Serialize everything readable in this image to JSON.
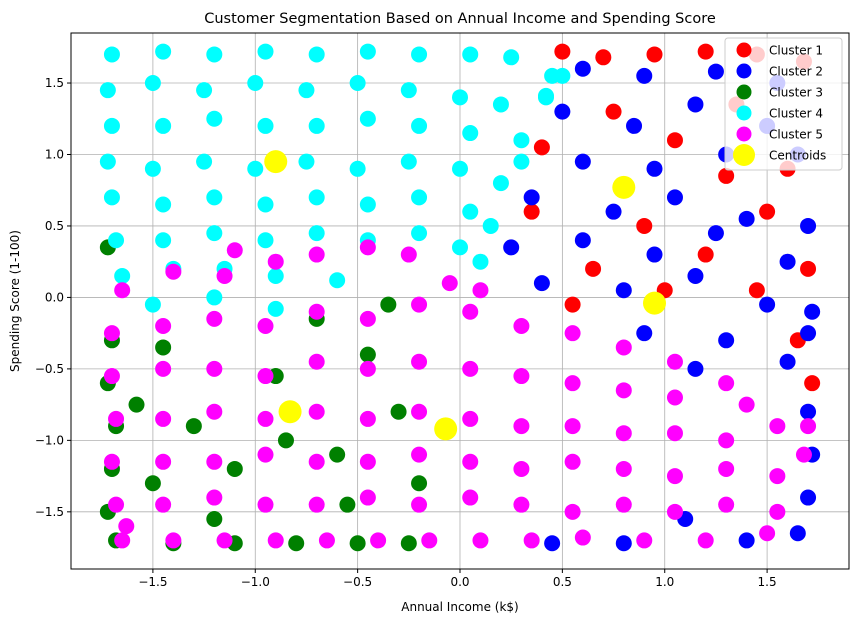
{
  "chart_data": {
    "type": "scatter",
    "title": "Customer Segmentation Based on Annual Income and Spending Score",
    "xlabel": "Annual Income (k$)",
    "ylabel": "Spending Score (1-100)",
    "xlim": [
      -1.9,
      1.9
    ],
    "ylim": [
      -1.9,
      1.85
    ],
    "xticks": [
      -1.5,
      -1.0,
      -0.5,
      0.0,
      0.5,
      1.0,
      1.5
    ],
    "xtick_labels": [
      "−1.5",
      "−1.0",
      "−0.5",
      "0.0",
      "0.5",
      "1.0",
      "1.5"
    ],
    "yticks": [
      -1.5,
      -1.0,
      -0.5,
      0.0,
      0.5,
      1.0,
      1.5
    ],
    "ytick_labels": [
      "−1.5",
      "−1.0",
      "−0.5",
      "0.0",
      "0.5",
      "1.0",
      "1.5"
    ],
    "grid": true,
    "legend_position": "top-right",
    "series": [
      {
        "name": "Cluster 1",
        "color": "#ff0000",
        "points": [
          [
            0.5,
            1.72
          ],
          [
            0.7,
            1.68
          ],
          [
            0.95,
            1.7
          ],
          [
            1.2,
            1.72
          ],
          [
            1.45,
            1.7
          ],
          [
            1.68,
            1.65
          ],
          [
            0.75,
            1.3
          ],
          [
            1.05,
            1.1
          ],
          [
            1.35,
            1.35
          ],
          [
            1.6,
            0.9
          ],
          [
            0.9,
            0.5
          ],
          [
            1.2,
            0.3
          ],
          [
            1.5,
            0.6
          ],
          [
            0.65,
            0.2
          ],
          [
            1.7,
            0.2
          ],
          [
            1.65,
            -0.3
          ],
          [
            0.4,
            1.05
          ],
          [
            1.72,
            -0.6
          ],
          [
            0.35,
            0.6
          ],
          [
            1.3,
            0.85
          ],
          [
            0.55,
            -0.05
          ],
          [
            1.0,
            0.05
          ],
          [
            1.45,
            0.05
          ]
        ]
      },
      {
        "name": "Cluster 2",
        "color": "#0000ff",
        "points": [
          [
            0.6,
            1.6
          ],
          [
            0.9,
            1.55
          ],
          [
            1.25,
            1.58
          ],
          [
            1.55,
            1.5
          ],
          [
            0.5,
            1.3
          ],
          [
            0.85,
            1.2
          ],
          [
            1.15,
            1.35
          ],
          [
            1.5,
            1.2
          ],
          [
            0.6,
            0.95
          ],
          [
            0.95,
            0.9
          ],
          [
            1.3,
            1.0
          ],
          [
            1.65,
            1.0
          ],
          [
            0.35,
            0.7
          ],
          [
            0.75,
            0.6
          ],
          [
            1.05,
            0.7
          ],
          [
            1.4,
            0.55
          ],
          [
            1.7,
            0.5
          ],
          [
            0.25,
            0.35
          ],
          [
            0.6,
            0.4
          ],
          [
            0.95,
            0.3
          ],
          [
            1.25,
            0.45
          ],
          [
            1.6,
            0.25
          ],
          [
            0.4,
            0.1
          ],
          [
            0.8,
            0.05
          ],
          [
            1.15,
            0.15
          ],
          [
            1.5,
            -0.05
          ],
          [
            1.72,
            -0.1
          ],
          [
            0.9,
            -0.25
          ],
          [
            1.3,
            -0.3
          ],
          [
            1.6,
            -0.45
          ],
          [
            1.15,
            -0.5
          ],
          [
            1.7,
            -0.8
          ],
          [
            1.72,
            -1.1
          ],
          [
            1.7,
            -1.4
          ],
          [
            1.65,
            -1.65
          ],
          [
            1.4,
            -1.7
          ],
          [
            0.8,
            -1.72
          ],
          [
            1.1,
            -1.55
          ],
          [
            0.45,
            -1.72
          ],
          [
            1.7,
            -0.25
          ]
        ]
      },
      {
        "name": "Cluster 3",
        "color": "#008000",
        "points": [
          [
            -1.72,
            0.35
          ],
          [
            -1.7,
            -0.3
          ],
          [
            -1.72,
            -0.6
          ],
          [
            -1.68,
            -0.9
          ],
          [
            -1.7,
            -1.2
          ],
          [
            -1.72,
            -1.5
          ],
          [
            -1.68,
            -1.7
          ],
          [
            -1.4,
            -1.72
          ],
          [
            -1.1,
            -1.72
          ],
          [
            -0.8,
            -1.72
          ],
          [
            -0.5,
            -1.72
          ],
          [
            -0.25,
            -1.72
          ],
          [
            -1.5,
            -1.3
          ],
          [
            -1.3,
            -0.9
          ],
          [
            -1.1,
            -1.2
          ],
          [
            -0.9,
            -0.55
          ],
          [
            -0.6,
            -1.1
          ],
          [
            -0.3,
            -0.8
          ],
          [
            -1.45,
            -0.35
          ],
          [
            -0.7,
            -0.15
          ],
          [
            -0.35,
            -0.05
          ],
          [
            -1.2,
            -1.55
          ],
          [
            -0.55,
            -1.45
          ],
          [
            -0.2,
            -1.3
          ],
          [
            -0.85,
            -1.0
          ],
          [
            -1.58,
            -0.75
          ],
          [
            -0.45,
            -0.4
          ]
        ]
      },
      {
        "name": "Cluster 4",
        "color": "#00ffff",
        "points": [
          [
            -1.7,
            1.7
          ],
          [
            -1.45,
            1.72
          ],
          [
            -1.2,
            1.7
          ],
          [
            -0.95,
            1.72
          ],
          [
            -0.7,
            1.7
          ],
          [
            -0.45,
            1.72
          ],
          [
            -0.2,
            1.7
          ],
          [
            0.05,
            1.7
          ],
          [
            0.25,
            1.68
          ],
          [
            0.45,
            1.55
          ],
          [
            -1.72,
            1.45
          ],
          [
            -1.5,
            1.5
          ],
          [
            -1.25,
            1.45
          ],
          [
            -1.0,
            1.5
          ],
          [
            -0.75,
            1.45
          ],
          [
            -0.5,
            1.5
          ],
          [
            -0.25,
            1.45
          ],
          [
            0.0,
            1.4
          ],
          [
            0.2,
            1.35
          ],
          [
            0.42,
            1.4
          ],
          [
            -1.7,
            1.2
          ],
          [
            -1.45,
            1.2
          ],
          [
            -1.2,
            1.25
          ],
          [
            -0.95,
            1.2
          ],
          [
            -0.7,
            1.2
          ],
          [
            -0.45,
            1.25
          ],
          [
            -0.2,
            1.2
          ],
          [
            0.05,
            1.15
          ],
          [
            0.3,
            1.1
          ],
          [
            -1.72,
            0.95
          ],
          [
            -1.5,
            0.9
          ],
          [
            -1.25,
            0.95
          ],
          [
            -1.0,
            0.9
          ],
          [
            -0.75,
            0.95
          ],
          [
            -0.5,
            0.9
          ],
          [
            -0.25,
            0.95
          ],
          [
            0.0,
            0.9
          ],
          [
            0.2,
            0.8
          ],
          [
            -1.7,
            0.7
          ],
          [
            -1.45,
            0.65
          ],
          [
            -1.2,
            0.7
          ],
          [
            -0.95,
            0.65
          ],
          [
            -0.7,
            0.7
          ],
          [
            -0.45,
            0.65
          ],
          [
            -0.2,
            0.7
          ],
          [
            0.05,
            0.6
          ],
          [
            0.15,
            0.5
          ],
          [
            -1.68,
            0.4
          ],
          [
            -1.45,
            0.4
          ],
          [
            -1.2,
            0.45
          ],
          [
            -0.95,
            0.4
          ],
          [
            -0.7,
            0.45
          ],
          [
            -0.45,
            0.4
          ],
          [
            -0.2,
            0.45
          ],
          [
            0.0,
            0.35
          ],
          [
            -1.65,
            0.15
          ],
          [
            -1.4,
            0.2
          ],
          [
            -1.15,
            0.2
          ],
          [
            -0.9,
            0.15
          ],
          [
            -0.6,
            0.12
          ],
          [
            -1.5,
            -0.05
          ],
          [
            -1.2,
            0.0
          ],
          [
            -0.9,
            -0.08
          ],
          [
            0.1,
            0.25
          ],
          [
            0.3,
            0.95
          ],
          [
            0.5,
            1.55
          ],
          [
            0.42,
            1.41
          ]
        ]
      },
      {
        "name": "Cluster 5",
        "color": "#ff00ff",
        "points": [
          [
            -1.65,
            0.05
          ],
          [
            -1.4,
            0.18
          ],
          [
            -1.15,
            0.15
          ],
          [
            -0.9,
            0.25
          ],
          [
            -0.7,
            0.3
          ],
          [
            -0.45,
            0.35
          ],
          [
            -0.25,
            0.3
          ],
          [
            -1.1,
            0.33
          ],
          [
            -0.05,
            0.1
          ],
          [
            0.1,
            0.05
          ],
          [
            -1.7,
            -0.25
          ],
          [
            -1.45,
            -0.2
          ],
          [
            -1.2,
            -0.15
          ],
          [
            -0.95,
            -0.2
          ],
          [
            -0.7,
            -0.1
          ],
          [
            -0.45,
            -0.15
          ],
          [
            -0.2,
            -0.05
          ],
          [
            0.05,
            -0.1
          ],
          [
            0.3,
            -0.2
          ],
          [
            0.55,
            -0.25
          ],
          [
            0.8,
            -0.35
          ],
          [
            1.05,
            -0.45
          ],
          [
            -1.7,
            -0.55
          ],
          [
            -1.45,
            -0.5
          ],
          [
            -1.2,
            -0.5
          ],
          [
            -0.95,
            -0.55
          ],
          [
            -0.7,
            -0.45
          ],
          [
            -0.45,
            -0.5
          ],
          [
            -0.2,
            -0.45
          ],
          [
            0.05,
            -0.5
          ],
          [
            0.3,
            -0.55
          ],
          [
            0.55,
            -0.6
          ],
          [
            0.8,
            -0.65
          ],
          [
            1.05,
            -0.7
          ],
          [
            1.3,
            -0.6
          ],
          [
            1.4,
            -0.75
          ],
          [
            -1.68,
            -0.85
          ],
          [
            -1.45,
            -0.85
          ],
          [
            -1.2,
            -0.8
          ],
          [
            -0.95,
            -0.85
          ],
          [
            -0.7,
            -0.8
          ],
          [
            -0.45,
            -0.85
          ],
          [
            -0.2,
            -0.8
          ],
          [
            0.05,
            -0.85
          ],
          [
            0.3,
            -0.9
          ],
          [
            0.55,
            -0.9
          ],
          [
            0.8,
            -0.95
          ],
          [
            1.05,
            -0.95
          ],
          [
            1.3,
            -1.0
          ],
          [
            1.55,
            -0.9
          ],
          [
            1.7,
            -0.9
          ],
          [
            -1.7,
            -1.15
          ],
          [
            -1.45,
            -1.15
          ],
          [
            -1.2,
            -1.15
          ],
          [
            -0.95,
            -1.1
          ],
          [
            -0.7,
            -1.15
          ],
          [
            -0.45,
            -1.15
          ],
          [
            -0.2,
            -1.1
          ],
          [
            0.05,
            -1.15
          ],
          [
            0.3,
            -1.2
          ],
          [
            0.55,
            -1.15
          ],
          [
            0.8,
            -1.2
          ],
          [
            1.05,
            -1.25
          ],
          [
            1.3,
            -1.2
          ],
          [
            1.55,
            -1.25
          ],
          [
            1.68,
            -1.1
          ],
          [
            -1.68,
            -1.45
          ],
          [
            -1.45,
            -1.45
          ],
          [
            -1.2,
            -1.4
          ],
          [
            -0.95,
            -1.45
          ],
          [
            -0.7,
            -1.45
          ],
          [
            -0.45,
            -1.4
          ],
          [
            -0.2,
            -1.45
          ],
          [
            0.05,
            -1.4
          ],
          [
            0.3,
            -1.45
          ],
          [
            0.55,
            -1.5
          ],
          [
            0.8,
            -1.45
          ],
          [
            1.05,
            -1.5
          ],
          [
            1.3,
            -1.45
          ],
          [
            1.55,
            -1.5
          ],
          [
            -1.65,
            -1.7
          ],
          [
            -1.4,
            -1.7
          ],
          [
            -1.15,
            -1.7
          ],
          [
            -0.9,
            -1.7
          ],
          [
            -0.65,
            -1.7
          ],
          [
            -0.4,
            -1.7
          ],
          [
            -0.15,
            -1.7
          ],
          [
            0.1,
            -1.7
          ],
          [
            0.35,
            -1.7
          ],
          [
            0.6,
            -1.68
          ],
          [
            0.9,
            -1.7
          ],
          [
            1.2,
            -1.7
          ],
          [
            1.5,
            -1.65
          ],
          [
            -1.63,
            -1.6
          ]
        ]
      }
    ],
    "centroids": {
      "name": "Centroids",
      "color": "#ffff00",
      "points": [
        [
          -0.9,
          0.95
        ],
        [
          0.8,
          0.77
        ],
        [
          0.95,
          -0.04
        ],
        [
          -0.83,
          -0.8
        ],
        [
          -0.07,
          -0.92
        ]
      ]
    }
  }
}
